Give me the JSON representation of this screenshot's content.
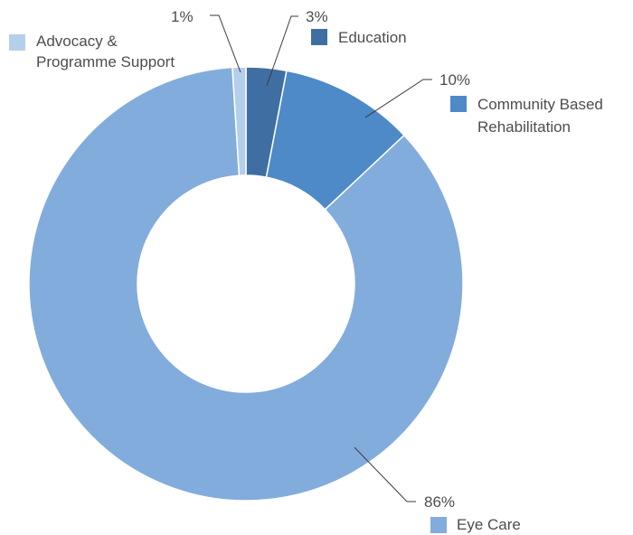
{
  "chart_data": {
    "type": "pie",
    "donut": true,
    "title": "",
    "slices": [
      {
        "label": "Education",
        "value": 3,
        "display_value": "3%",
        "color": "#3f6fa2"
      },
      {
        "label": "Community Based Rehabilitation",
        "label_lines": [
          "Community Based",
          "Rehabilitation"
        ],
        "value": 10,
        "display_value": "10%",
        "color": "#4d8ac7"
      },
      {
        "label": "Eye Care",
        "value": 86,
        "display_value": "86%",
        "color": "#82acdb"
      },
      {
        "label": "Advocacy & Programme Support",
        "label_lines": [
          "Advocacy &",
          "Programme Support"
        ],
        "value": 1,
        "display_value": "1%",
        "color": "#b4cfec"
      }
    ],
    "start_angle": "12 o'clock",
    "direction": "clockwise",
    "legend": "labels beside slices with leader lines"
  }
}
